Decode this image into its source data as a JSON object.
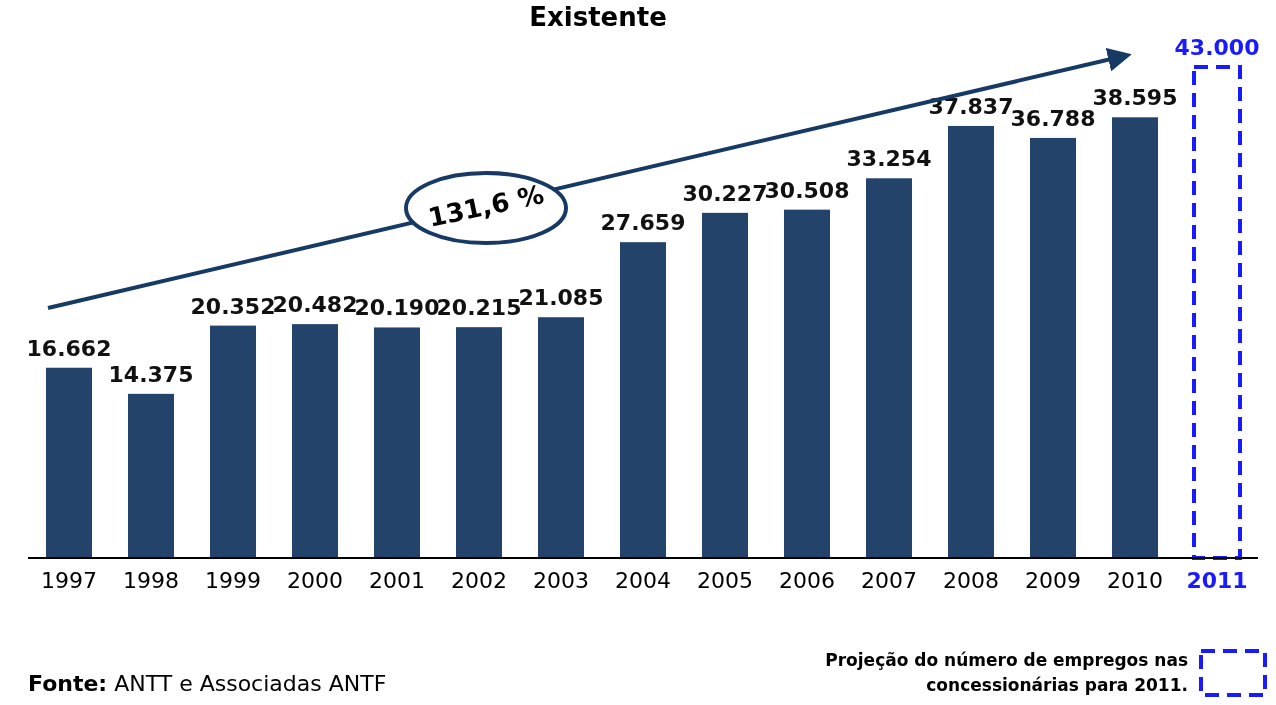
{
  "chart_data": {
    "type": "bar",
    "title": "Existente",
    "categories": [
      "1997",
      "1998",
      "1999",
      "2000",
      "2001",
      "2002",
      "2003",
      "2004",
      "2005",
      "2006",
      "2007",
      "2008",
      "2009",
      "2010",
      "2011"
    ],
    "stacked": true,
    "series": [
      {
        "color": "#24436b",
        "values": [
          16662,
          14375,
          20352,
          20482,
          20190,
          20215,
          21085,
          27659,
          30227,
          30508,
          33254,
          37837,
          36788,
          38595,
          null
        ],
        "value_labels": [
          "16.662",
          "14.375",
          "20.352",
          "20.482",
          "20.190",
          "20.215",
          "21.085",
          "27.659",
          "30.227",
          "30.508",
          "33.254",
          "37.837",
          "36.788",
          "38.595",
          null
        ]
      },
      {
        "name": "Projeção do número de empregos nas concessionárias para 2011.",
        "color": "#1a1aff",
        "line_style": "dashed",
        "values": [
          null,
          null,
          null,
          null,
          null,
          null,
          null,
          null,
          null,
          null,
          null,
          null,
          null,
          null,
          43000
        ],
        "value_labels": [
          null,
          null,
          null,
          null,
          null,
          null,
          null,
          null,
          null,
          null,
          null,
          null,
          null,
          null,
          "43.000"
        ]
      }
    ],
    "legend": "bottom right",
    "annotations": [
      "131,6 %",
      "Fonte: ANTT e Associadas ANTF"
    ]
  }
}
